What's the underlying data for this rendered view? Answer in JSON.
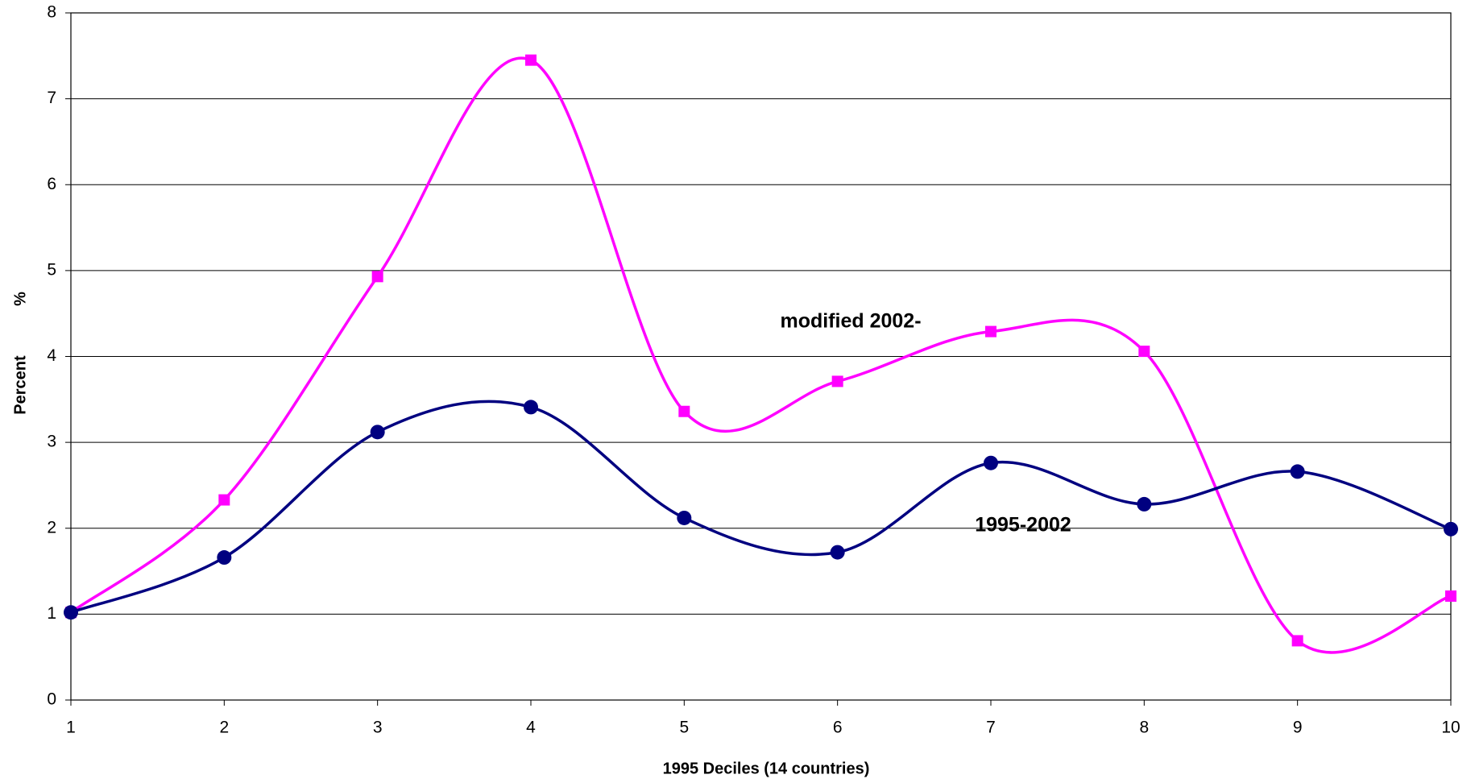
{
  "chart_data": {
    "type": "line",
    "smooth": true,
    "x_label": "1995 Deciles (14 countries)",
    "y_label": "Percent",
    "y_unit": "%",
    "x": [
      1,
      2,
      3,
      4,
      5,
      6,
      7,
      8,
      9,
      10
    ],
    "xlim": [
      1,
      10
    ],
    "xticks": [
      1,
      2,
      3,
      4,
      5,
      6,
      7,
      8,
      9,
      10
    ],
    "ylim": [
      0,
      8
    ],
    "yticks": [
      0,
      1,
      2,
      3,
      4,
      5,
      6,
      7,
      8
    ],
    "grid": true,
    "series": [
      {
        "name": "modified 2002-",
        "color": "#ff00ff",
        "marker": "square",
        "values": [
          1.02,
          2.33,
          4.93,
          7.45,
          3.36,
          3.71,
          4.29,
          4.06,
          0.69,
          1.21
        ]
      },
      {
        "name": "1995-2002",
        "color": "#000080",
        "marker": "circle",
        "values": [
          1.02,
          1.66,
          3.12,
          3.41,
          2.12,
          1.72,
          2.76,
          2.28,
          2.66,
          1.99
        ]
      }
    ]
  }
}
